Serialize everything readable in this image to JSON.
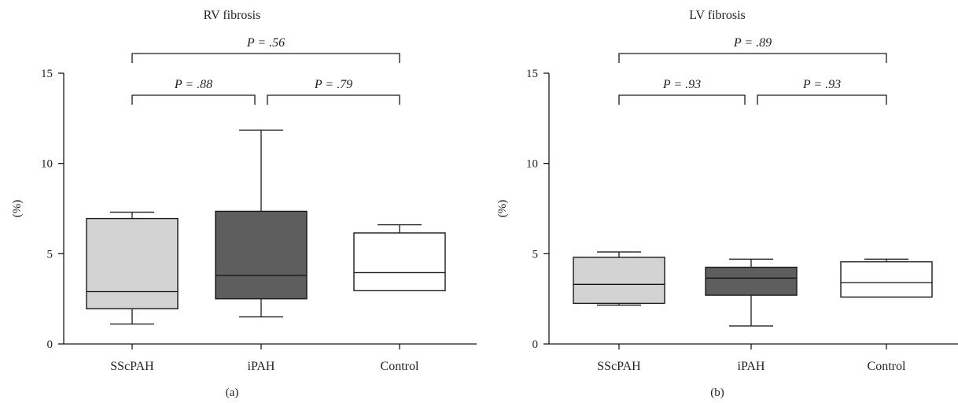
{
  "chart_data": [
    {
      "type": "box",
      "title": "RV fibrosis",
      "ylabel": "(%)",
      "caption": "(a)",
      "categories": [
        "SScPAH",
        "iPAH",
        "Control"
      ],
      "ylim": [
        0,
        15
      ],
      "yticks": [
        0,
        5,
        10,
        15
      ],
      "box_colors": [
        "#d3d3d3",
        "#5e5e5e",
        "#ffffff"
      ],
      "boxes": [
        {
          "name": "SScPAH",
          "min": 1.1,
          "q1": 1.95,
          "median": 2.9,
          "q3": 6.95,
          "max": 7.3
        },
        {
          "name": "iPAH",
          "min": 1.5,
          "q1": 2.5,
          "median": 3.8,
          "q3": 7.35,
          "max": 11.85
        },
        {
          "name": "Control",
          "min": 2.95,
          "q1": 2.95,
          "median": 3.95,
          "q3": 6.15,
          "max": 6.6
        }
      ],
      "comparisons": [
        {
          "from": 0,
          "to": 2,
          "label": "P = .56",
          "level": 2
        },
        {
          "from": 0,
          "to": 1,
          "label": "P = .88",
          "level": 1
        },
        {
          "from": 1,
          "to": 2,
          "label": "P = .79",
          "level": 1
        }
      ]
    },
    {
      "type": "box",
      "title": "LV fibrosis",
      "ylabel": "(%)",
      "caption": "(b)",
      "categories": [
        "SScPAH",
        "iPAH",
        "Control"
      ],
      "ylim": [
        0,
        15
      ],
      "yticks": [
        0,
        5,
        10,
        15
      ],
      "box_colors": [
        "#d3d3d3",
        "#5e5e5e",
        "#ffffff"
      ],
      "boxes": [
        {
          "name": "SScPAH",
          "min": 2.15,
          "q1": 2.25,
          "median": 3.3,
          "q3": 4.8,
          "max": 5.1
        },
        {
          "name": "iPAH",
          "min": 1.0,
          "q1": 2.7,
          "median": 3.65,
          "q3": 4.25,
          "max": 4.7
        },
        {
          "name": "Control",
          "min": 2.6,
          "q1": 2.6,
          "median": 3.4,
          "q3": 4.55,
          "max": 4.7
        }
      ],
      "comparisons": [
        {
          "from": 0,
          "to": 2,
          "label": "P = .89",
          "level": 2
        },
        {
          "from": 0,
          "to": 1,
          "label": "P = .93",
          "level": 1
        },
        {
          "from": 1,
          "to": 2,
          "label": "P = .93",
          "level": 1
        }
      ]
    }
  ]
}
